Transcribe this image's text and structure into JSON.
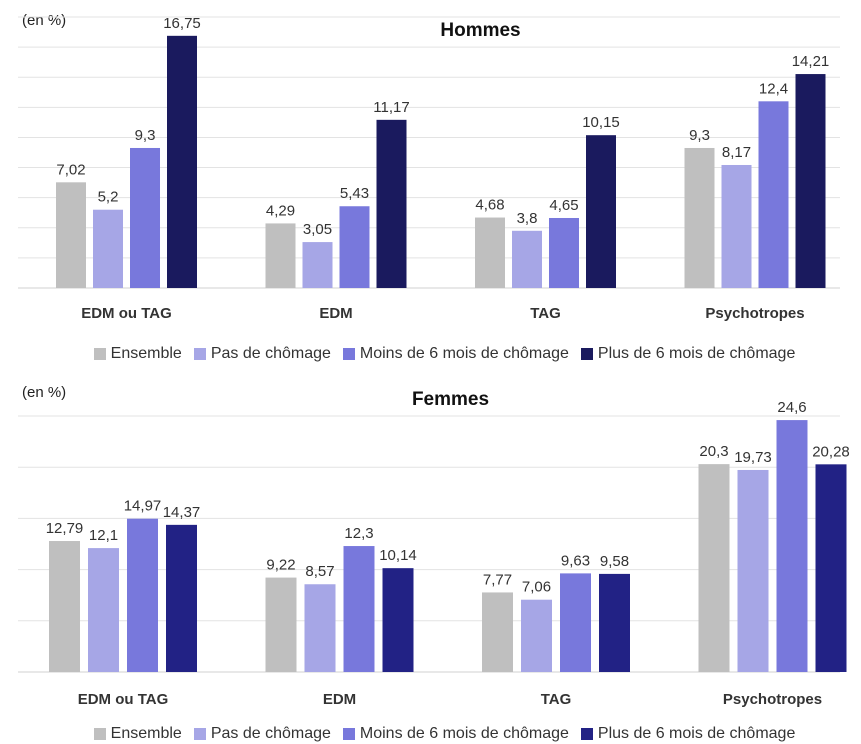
{
  "colors": [
    "#bfbfbf",
    "#a6a6e6",
    "#7878dc",
    "#1a1a5e"
  ],
  "colors_femmes": [
    "#bfbfbf",
    "#a6a6e6",
    "#7878dc",
    "#222285"
  ],
  "chart_data": [
    {
      "type": "bar",
      "title": "Hommes",
      "unit_label": "(en %)",
      "categories": [
        "EDM ou TAG",
        "EDM",
        "TAG",
        "Psychotropes"
      ],
      "ylim": [
        0,
        18
      ],
      "grid": true,
      "legend_placement": "bottom",
      "series": [
        {
          "name": "Ensemble",
          "values": [
            7.02,
            4.29,
            4.68,
            9.3
          ],
          "labels": [
            "7,02",
            "4,29",
            "4,68",
            "9,3"
          ]
        },
        {
          "name": "Pas de chômage",
          "values": [
            5.2,
            3.05,
            3.8,
            8.17
          ],
          "labels": [
            "5,2",
            "3,05",
            "3,8",
            "8,17"
          ]
        },
        {
          "name": "Moins de 6 mois de chômage",
          "values": [
            9.3,
            5.43,
            4.65,
            12.4
          ],
          "labels": [
            "9,3",
            "5,43",
            "4,65",
            "12,4"
          ]
        },
        {
          "name": "Plus de 6 mois de chômage",
          "values": [
            16.75,
            11.17,
            10.15,
            14.21
          ],
          "labels": [
            "16,75",
            "11,17",
            "10,15",
            "14,21"
          ]
        }
      ]
    },
    {
      "type": "bar",
      "title": "Femmes",
      "unit_label": "(en %)",
      "categories": [
        "EDM ou TAG",
        "EDM",
        "TAG",
        "Psychotropes"
      ],
      "ylim": [
        0,
        25
      ],
      "grid": true,
      "legend_placement": "bottom",
      "series": [
        {
          "name": "Ensemble",
          "values": [
            12.79,
            9.22,
            7.77,
            20.3
          ],
          "labels": [
            "12,79",
            "9,22",
            "7,77",
            "20,3"
          ]
        },
        {
          "name": "Pas de chômage",
          "values": [
            12.1,
            8.57,
            7.06,
            19.73
          ],
          "labels": [
            "12,1",
            "8,57",
            "7,06",
            "19,73"
          ]
        },
        {
          "name": "Moins de 6 mois de chômage",
          "values": [
            14.97,
            12.3,
            9.63,
            24.6
          ],
          "labels": [
            "14,97",
            "12,3",
            "9,63",
            "24,6"
          ]
        },
        {
          "name": "Plus de 6 mois de chômage",
          "values": [
            14.37,
            10.14,
            9.58,
            20.28
          ],
          "labels": [
            "14,37",
            "10,14",
            "9,58",
            "20,28"
          ]
        }
      ]
    }
  ]
}
